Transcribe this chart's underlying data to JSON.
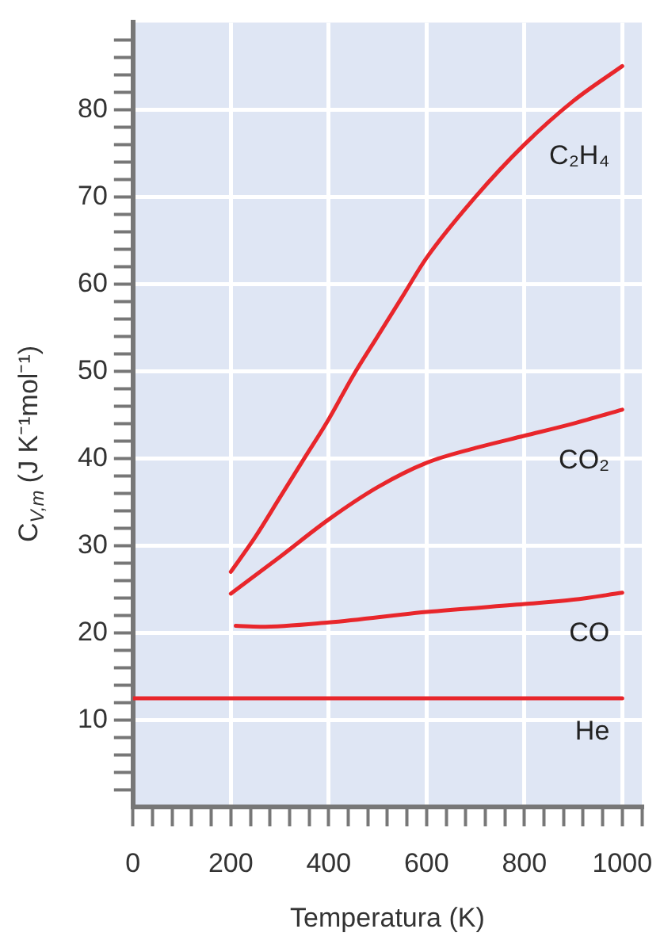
{
  "chart_data": {
    "type": "line",
    "xlabel": "Temperatura (K)",
    "ylabel": "C$_{V,m}$ (J K⁻¹mol⁻¹)",
    "xlim": [
      0,
      1040
    ],
    "ylim": [
      0,
      90
    ],
    "xticks": [
      {
        "value": 0,
        "label": "0"
      },
      {
        "value": 40,
        "label": null
      },
      {
        "value": 80,
        "label": null
      },
      {
        "value": 120,
        "label": null
      },
      {
        "value": 160,
        "label": null
      },
      200,
      {
        "value": 240,
        "label": null
      },
      {
        "value": 280,
        "label": null
      },
      {
        "value": 320,
        "label": null
      },
      {
        "value": 360,
        "label": null
      },
      400,
      {
        "value": 440,
        "label": null
      },
      {
        "value": 480,
        "label": null
      },
      {
        "value": 520,
        "label": null
      },
      {
        "value": 560,
        "label": null
      },
      600,
      {
        "value": 640,
        "label": null
      },
      {
        "value": 680,
        "label": null
      },
      {
        "value": 720,
        "label": null
      },
      {
        "value": 760,
        "label": null
      },
      800,
      {
        "value": 840,
        "label": null
      },
      {
        "value": 880,
        "label": null
      },
      {
        "value": 920,
        "label": null
      },
      {
        "value": 960,
        "label": null
      },
      1000,
      {
        "value": 1040,
        "label": null
      }
    ],
    "yticks": [
      {
        "value": 2,
        "label": null
      },
      {
        "value": 4,
        "label": null
      },
      {
        "value": 6,
        "label": null
      },
      {
        "value": 8,
        "label": null
      },
      10,
      {
        "value": 12,
        "label": null
      },
      {
        "value": 14,
        "label": null
      },
      {
        "value": 16,
        "label": null
      },
      {
        "value": 18,
        "label": null
      },
      20,
      {
        "value": 22,
        "label": null
      },
      {
        "value": 24,
        "label": null
      },
      {
        "value": 26,
        "label": null
      },
      {
        "value": 28,
        "label": null
      },
      30,
      {
        "value": 32,
        "label": null
      },
      {
        "value": 34,
        "label": null
      },
      {
        "value": 36,
        "label": null
      },
      {
        "value": 38,
        "label": null
      },
      40,
      {
        "value": 42,
        "label": null
      },
      {
        "value": 44,
        "label": null
      },
      {
        "value": 46,
        "label": null
      },
      {
        "value": 48,
        "label": null
      },
      50,
      {
        "value": 52,
        "label": null
      },
      {
        "value": 54,
        "label": null
      },
      {
        "value": 56,
        "label": null
      },
      {
        "value": 58,
        "label": null
      },
      60,
      {
        "value": 62,
        "label": null
      },
      {
        "value": 64,
        "label": null
      },
      {
        "value": 66,
        "label": null
      },
      {
        "value": 68,
        "label": null
      },
      70,
      {
        "value": 72,
        "label": null
      },
      {
        "value": 74,
        "label": null
      },
      {
        "value": 76,
        "label": null
      },
      {
        "value": 78,
        "label": null
      },
      80,
      {
        "value": 82,
        "label": null
      },
      {
        "value": 84,
        "label": null
      },
      {
        "value": 86,
        "label": null
      },
      {
        "value": 88,
        "label": null
      }
    ],
    "grid": true,
    "legend": false,
    "marker": "none",
    "line_style": "solid",
    "series": [
      {
        "name": "C₂H₄",
        "color": "#e8262b",
        "x": [
          200,
          250,
          300,
          350,
          400,
          450,
          500,
          550,
          600,
          700,
          800,
          900,
          1000
        ],
        "values": [
          27,
          31,
          35.5,
          40,
          44.5,
          49.5,
          54,
          58.5,
          63,
          70,
          76,
          81,
          85
        ]
      },
      {
        "name": "CO₂",
        "color": "#e8262b",
        "x": [
          200,
          300,
          400,
          500,
          600,
          700,
          800,
          900,
          1000
        ],
        "values": [
          24.5,
          28.7,
          33,
          36.7,
          39.5,
          41.2,
          42.6,
          44,
          45.6
        ]
      },
      {
        "name": "CO",
        "color": "#e8262b",
        "x": [
          210,
          260,
          400,
          600,
          800,
          900,
          1000
        ],
        "values": [
          20.8,
          20.7,
          21.2,
          22.4,
          23.3,
          23.8,
          24.6
        ]
      },
      {
        "name": "He",
        "color": "#e8262b",
        "x": [
          0,
          1000
        ],
        "values": [
          12.5,
          12.5
        ]
      }
    ]
  }
}
